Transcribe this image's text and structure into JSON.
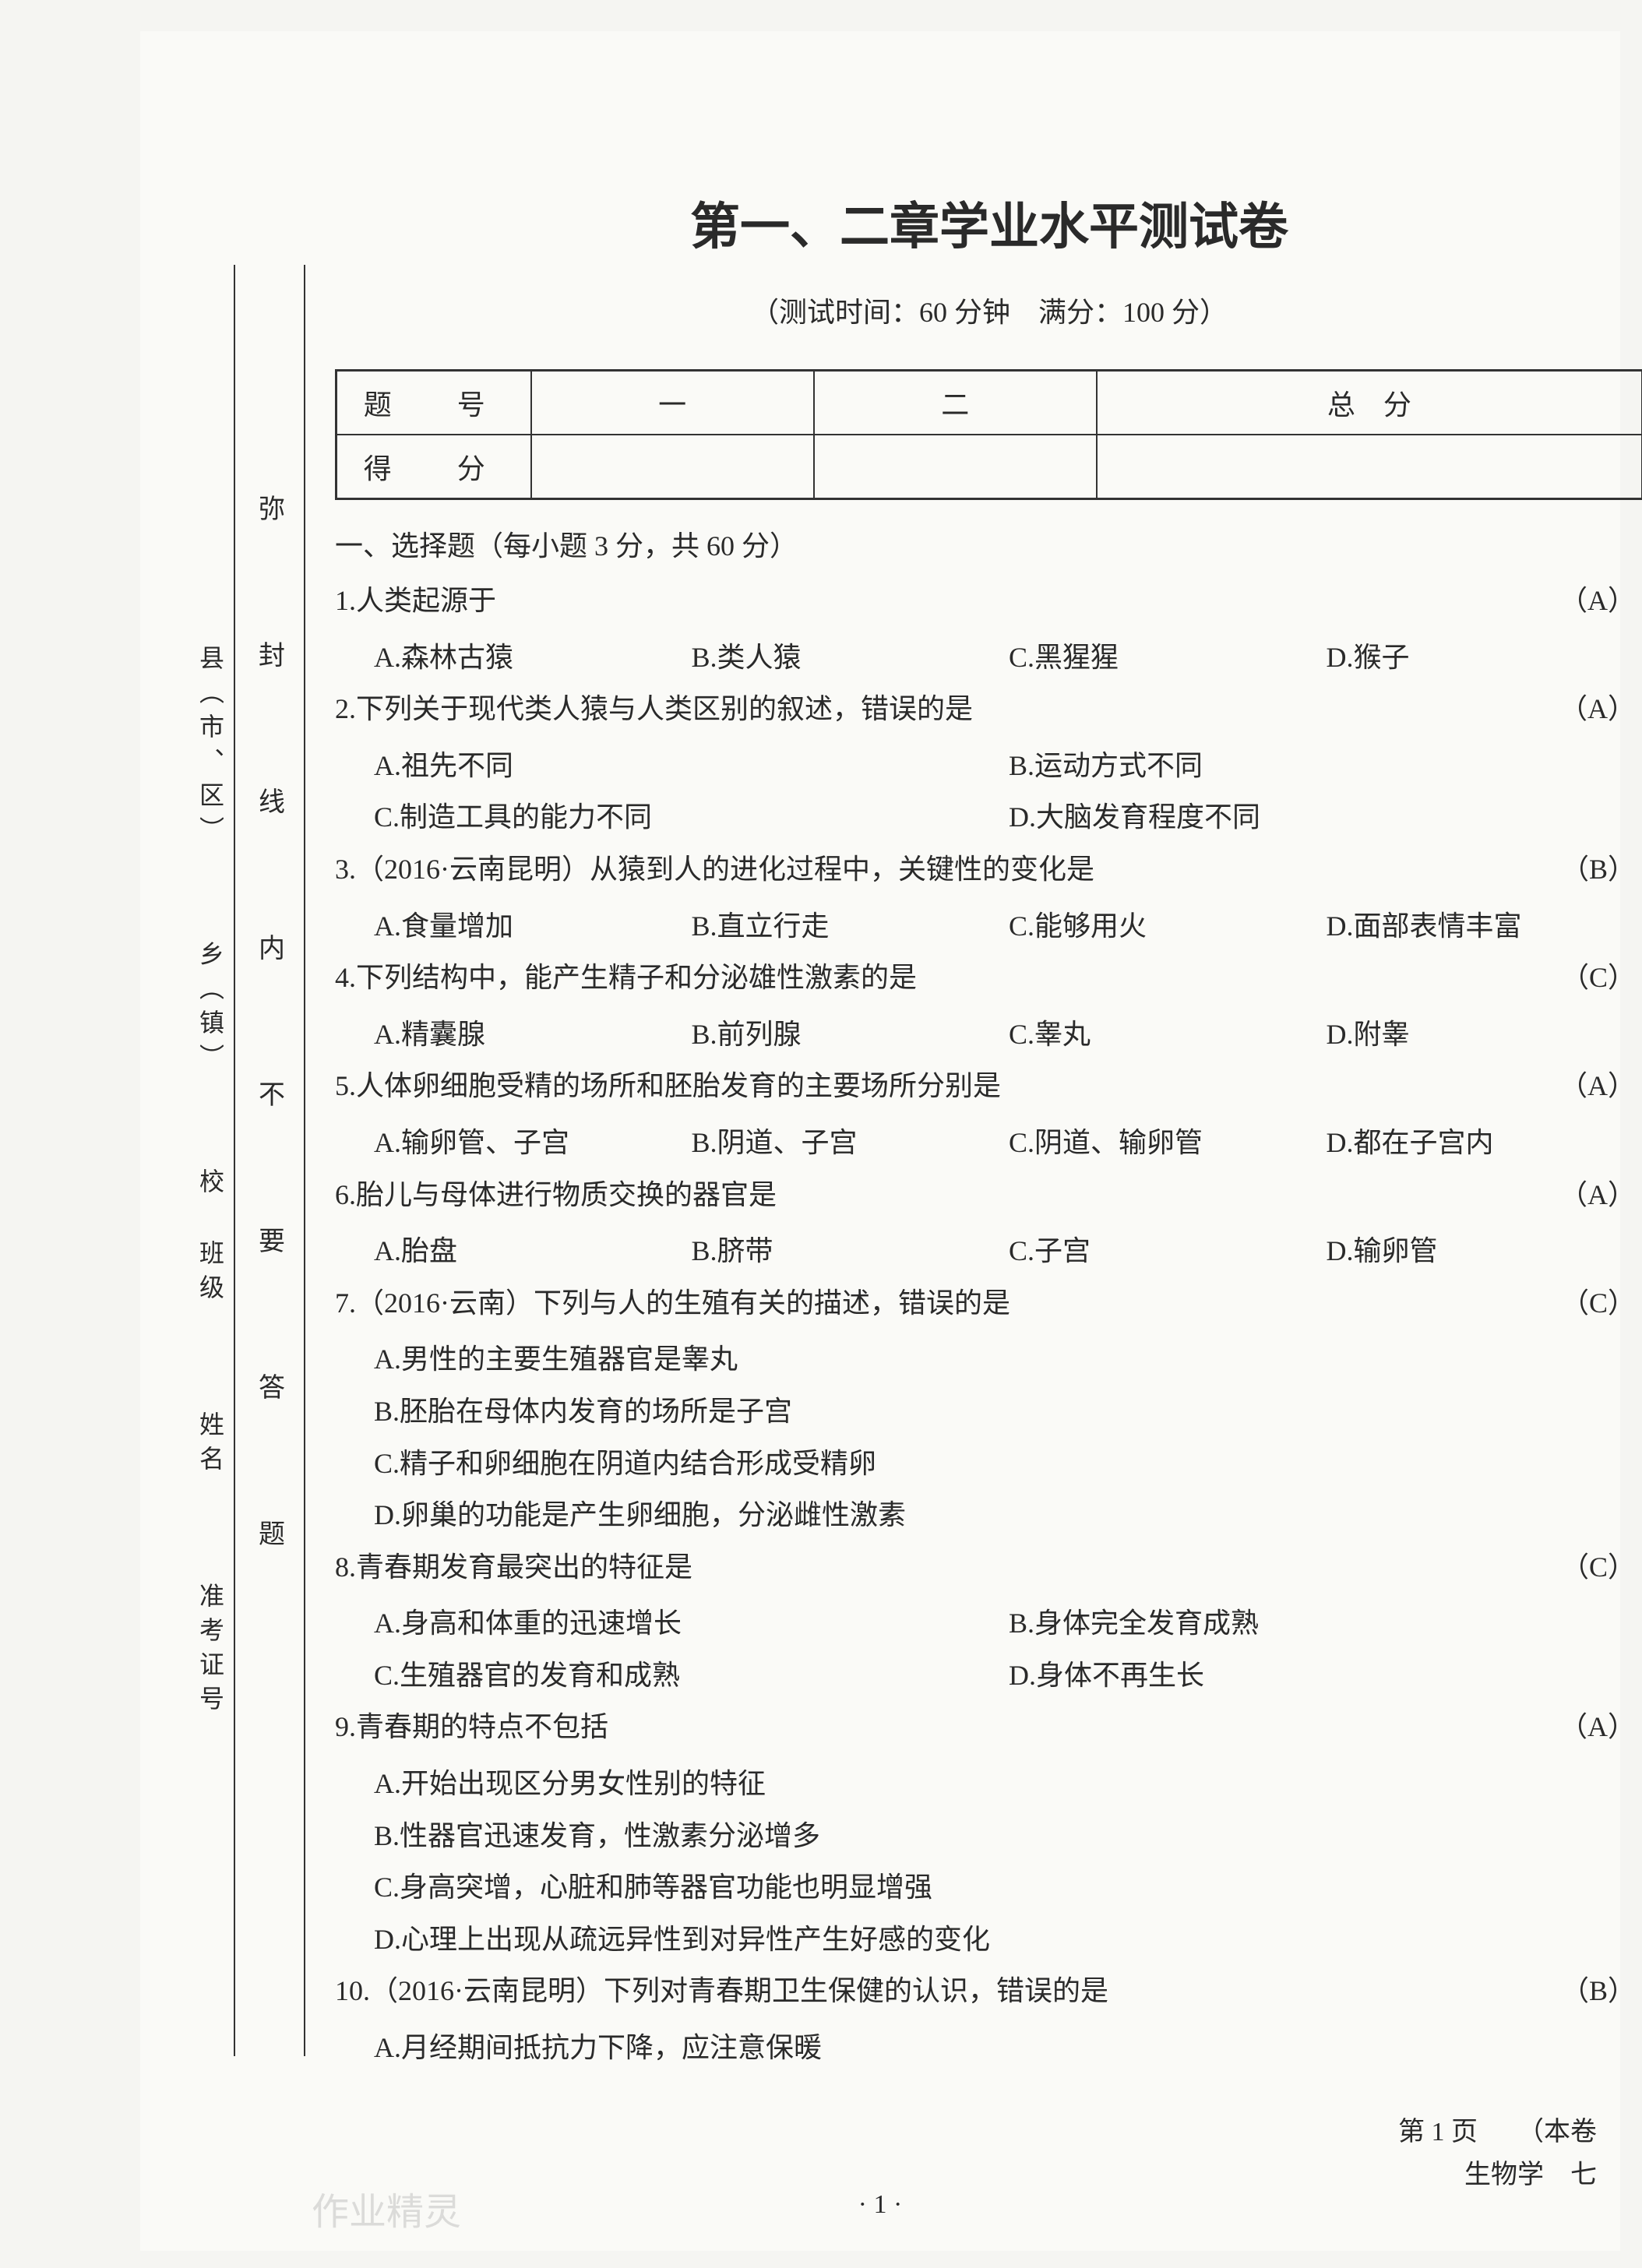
{
  "sidebar": {
    "outer": "县（市、区）　　　乡（镇）　　　校 班级　　　姓名　　　准考证号　　　",
    "inner": "弥　封　线　内　不　要　答　题"
  },
  "title": "第一、二章学业水平测试卷",
  "subtitle": "（测试时间：60 分钟　满分：100 分）",
  "score_table": {
    "row1_label": "题　号",
    "row2_label": "得　分",
    "col1": "一",
    "col2": "二",
    "col3": "总　分"
  },
  "section1_header": "一、选择题（每小题 3 分，共 60 分）",
  "questions": [
    {
      "num": "1.",
      "stem": "人类起源于",
      "answer": "（A）",
      "layout": "4",
      "opts": [
        "A.森林古猿",
        "B.类人猿",
        "C.黑猩猩",
        "D.猴子"
      ]
    },
    {
      "num": "2.",
      "stem": "下列关于现代类人猿与人类区别的叙述，错误的是",
      "answer": "（A）",
      "layout": "2",
      "opts": [
        "A.祖先不同",
        "B.运动方式不同",
        "C.制造工具的能力不同",
        "D.大脑发育程度不同"
      ]
    },
    {
      "num": "3.",
      "stem": "（2016·云南昆明）从猿到人的进化过程中，关键性的变化是",
      "answer": "（B）",
      "layout": "4",
      "opts": [
        "A.食量增加",
        "B.直立行走",
        "C.能够用火",
        "D.面部表情丰富"
      ]
    },
    {
      "num": "4.",
      "stem": "下列结构中，能产生精子和分泌雄性激素的是",
      "answer": "（C）",
      "layout": "4",
      "opts": [
        "A.精囊腺",
        "B.前列腺",
        "C.睾丸",
        "D.附睾"
      ]
    },
    {
      "num": "5.",
      "stem": "人体卵细胞受精的场所和胚胎发育的主要场所分别是",
      "answer": "（A）",
      "layout": "4",
      "opts": [
        "A.输卵管、子宫",
        "B.阴道、子宫",
        "C.阴道、输卵管",
        "D.都在子宫内"
      ]
    },
    {
      "num": "6.",
      "stem": "胎儿与母体进行物质交换的器官是",
      "answer": "（A）",
      "layout": "4",
      "opts": [
        "A.胎盘",
        "B.脐带",
        "C.子宫",
        "D.输卵管"
      ]
    },
    {
      "num": "7.",
      "stem": "（2016·云南）下列与人的生殖有关的描述，错误的是",
      "answer": "（C）",
      "layout": "1",
      "opts": [
        "A.男性的主要生殖器官是睾丸",
        "B.胚胎在母体内发育的场所是子宫",
        "C.精子和卵细胞在阴道内结合形成受精卵",
        "D.卵巢的功能是产生卵细胞，分泌雌性激素"
      ]
    },
    {
      "num": "8.",
      "stem": "青春期发育最突出的特征是",
      "answer": "（C）",
      "layout": "2",
      "opts": [
        "A.身高和体重的迅速增长",
        "B.身体完全发育成熟",
        "C.生殖器官的发育和成熟",
        "D.身体不再生长"
      ]
    },
    {
      "num": "9.",
      "stem": "青春期的特点不包括",
      "answer": "（A）",
      "layout": "1",
      "opts": [
        "A.开始出现区分男女性别的特征",
        "B.性器官迅速发育，性激素分泌增多",
        "C.身高突增，心脏和肺等器官功能也明显增强",
        "D.心理上出现从疏远异性到对异性产生好感的变化"
      ]
    },
    {
      "num": "10.",
      "stem": "（2016·云南昆明）下列对青春期卫生保健的认识，错误的是",
      "answer": "（B）",
      "layout": "1-partial",
      "opts": [
        "A.月经期间抵抗力下降，应注意保暖"
      ]
    }
  ],
  "footer_center": "· 1 ·",
  "footer_right_line1": "第 1 页　　（本卷",
  "footer_right_line2": "生物学　七",
  "watermark": "作业精灵"
}
